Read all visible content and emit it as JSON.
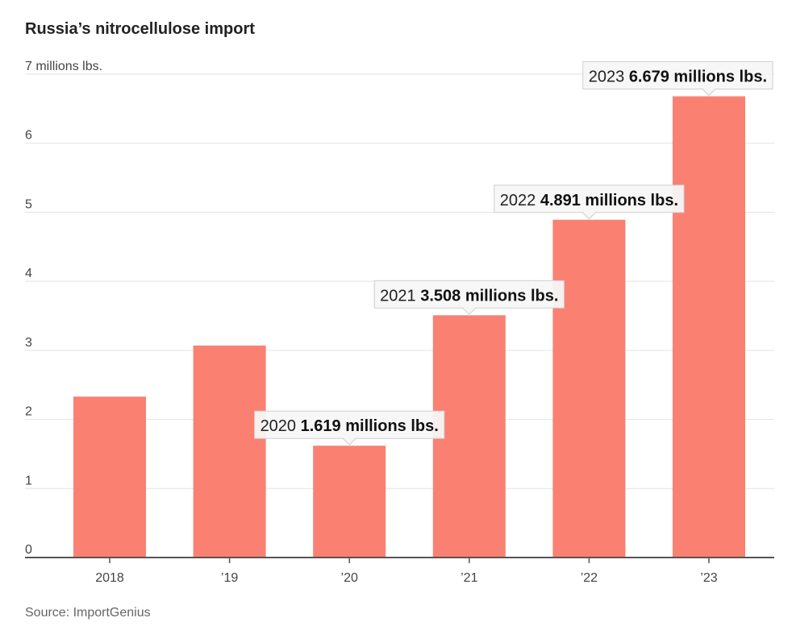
{
  "chart_data": {
    "type": "bar",
    "title": "Russia’s nitrocellulose import",
    "ylabel": "millions lbs.",
    "xlabel": "",
    "ylim": [
      0,
      7
    ],
    "yticks": [
      0,
      1,
      2,
      3,
      4,
      5,
      6,
      7
    ],
    "ytick_top_label": "7 millions lbs.",
    "grid": true,
    "categories": [
      "2018",
      "’19",
      "’20",
      "’21",
      "’22",
      "’23"
    ],
    "years": [
      "2018",
      "2019",
      "2020",
      "2021",
      "2022",
      "2023"
    ],
    "values": [
      2.33,
      3.07,
      1.619,
      3.508,
      4.891,
      6.679
    ],
    "bar_color": "#fa8072",
    "annotations": [
      {
        "index": 2,
        "year": "2020",
        "value_text": "1.619 millions lbs."
      },
      {
        "index": 3,
        "year": "2021",
        "value_text": "3.508 millions lbs."
      },
      {
        "index": 4,
        "year": "2022",
        "value_text": "4.891 millions lbs."
      },
      {
        "index": 5,
        "year": "2023",
        "value_text": "6.679 millions lbs."
      }
    ],
    "source": "Source: ImportGenius"
  }
}
